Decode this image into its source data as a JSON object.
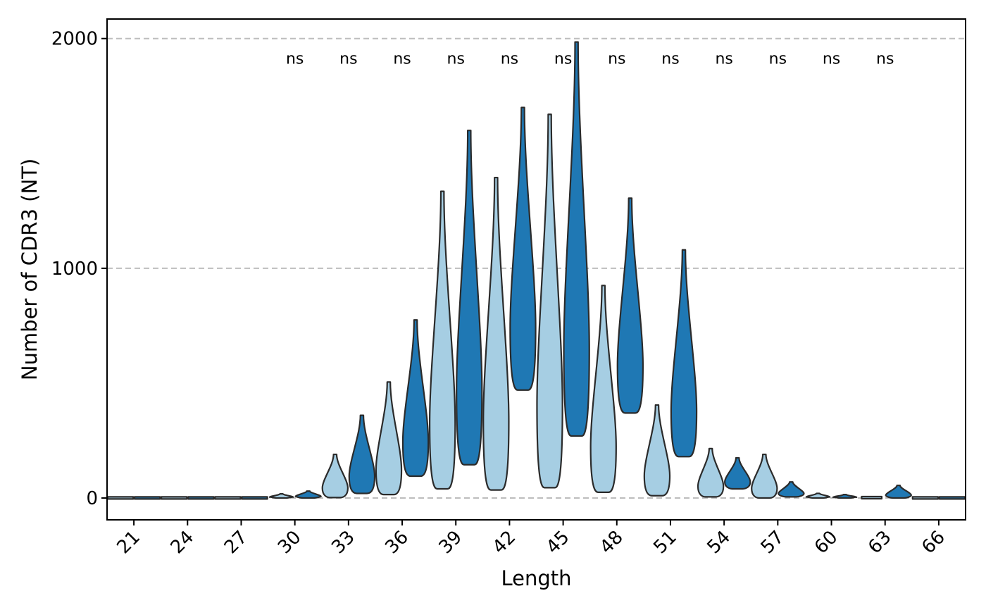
{
  "chart_data": {
    "type": "violin",
    "xlabel": "Length",
    "ylabel": "Number of CDR3 (NT)",
    "categories": [
      "21",
      "24",
      "27",
      "30",
      "33",
      "36",
      "39",
      "42",
      "45",
      "48",
      "51",
      "54",
      "57",
      "60",
      "63",
      "66"
    ],
    "ylim": [
      -95,
      2085
    ],
    "yticks": [
      0,
      1000,
      2000
    ],
    "grid": "horizontal dashed",
    "groups": [
      {
        "color": "#a6cee3"
      },
      {
        "color": "#1f78b4"
      }
    ],
    "violins": [
      {
        "category": "21",
        "group": 0,
        "min": 0,
        "max": 1,
        "maxWidth": 0.38
      },
      {
        "category": "21",
        "group": 1,
        "min": 0,
        "max": 1,
        "maxWidth": 0.38
      },
      {
        "category": "24",
        "group": 0,
        "min": 0,
        "max": 1,
        "maxWidth": 0.38
      },
      {
        "category": "24",
        "group": 1,
        "min": 0,
        "max": 1,
        "maxWidth": 0.38
      },
      {
        "category": "27",
        "group": 0,
        "min": 0,
        "max": 1,
        "maxWidth": 0.38
      },
      {
        "category": "27",
        "group": 1,
        "min": 0,
        "max": 1,
        "maxWidth": 0.38
      },
      {
        "category": "30",
        "group": 0,
        "min": 0,
        "max": 18,
        "maxWidth": 0.35
      },
      {
        "category": "30",
        "group": 1,
        "min": 0,
        "max": 30,
        "maxWidth": 0.38
      },
      {
        "category": "33",
        "group": 0,
        "min": 2,
        "max": 190,
        "maxWidth": 0.38
      },
      {
        "category": "33",
        "group": 1,
        "min": 20,
        "max": 360,
        "maxWidth": 0.38
      },
      {
        "category": "36",
        "group": 0,
        "min": 15,
        "max": 505,
        "maxWidth": 0.38
      },
      {
        "category": "36",
        "group": 1,
        "min": 95,
        "max": 775,
        "maxWidth": 0.38
      },
      {
        "category": "39",
        "group": 0,
        "min": 40,
        "max": 1335,
        "maxWidth": 0.38
      },
      {
        "category": "39",
        "group": 1,
        "min": 145,
        "max": 1600,
        "maxWidth": 0.38
      },
      {
        "category": "42",
        "group": 0,
        "min": 35,
        "max": 1395,
        "maxWidth": 0.38
      },
      {
        "category": "42",
        "group": 1,
        "min": 470,
        "max": 1700,
        "maxWidth": 0.38
      },
      {
        "category": "45",
        "group": 0,
        "min": 45,
        "max": 1670,
        "maxWidth": 0.38
      },
      {
        "category": "45",
        "group": 1,
        "min": 270,
        "max": 1985,
        "maxWidth": 0.38
      },
      {
        "category": "48",
        "group": 0,
        "min": 25,
        "max": 925,
        "maxWidth": 0.38
      },
      {
        "category": "48",
        "group": 1,
        "min": 370,
        "max": 1305,
        "maxWidth": 0.38
      },
      {
        "category": "51",
        "group": 0,
        "min": 10,
        "max": 405,
        "maxWidth": 0.38
      },
      {
        "category": "51",
        "group": 1,
        "min": 180,
        "max": 1080,
        "maxWidth": 0.38
      },
      {
        "category": "54",
        "group": 0,
        "min": 5,
        "max": 215,
        "maxWidth": 0.38
      },
      {
        "category": "54",
        "group": 1,
        "min": 40,
        "max": 175,
        "maxWidth": 0.38
      },
      {
        "category": "57",
        "group": 0,
        "min": 0,
        "max": 190,
        "maxWidth": 0.38
      },
      {
        "category": "57",
        "group": 1,
        "min": 5,
        "max": 70,
        "maxWidth": 0.38
      },
      {
        "category": "60",
        "group": 0,
        "min": 0,
        "max": 20,
        "maxWidth": 0.35
      },
      {
        "category": "60",
        "group": 1,
        "min": 0,
        "max": 15,
        "maxWidth": 0.35
      },
      {
        "category": "63",
        "group": 0,
        "min": 0,
        "max": 3,
        "maxWidth": 0.3
      },
      {
        "category": "63",
        "group": 1,
        "min": 0,
        "max": 55,
        "maxWidth": 0.38
      },
      {
        "category": "66",
        "group": 0,
        "min": 0,
        "max": 1,
        "maxWidth": 0.38
      },
      {
        "category": "66",
        "group": 1,
        "min": 0,
        "max": 1,
        "maxWidth": 0.38
      }
    ],
    "annotations": [
      {
        "category": "30",
        "text": "ns"
      },
      {
        "category": "33",
        "text": "ns"
      },
      {
        "category": "36",
        "text": "ns"
      },
      {
        "category": "39",
        "text": "ns"
      },
      {
        "category": "42",
        "text": "ns"
      },
      {
        "category": "45",
        "text": "ns"
      },
      {
        "category": "48",
        "text": "ns"
      },
      {
        "category": "51",
        "text": "ns"
      },
      {
        "category": "54",
        "text": "ns"
      },
      {
        "category": "57",
        "text": "ns"
      },
      {
        "category": "60",
        "text": "ns"
      },
      {
        "category": "63",
        "text": "ns"
      }
    ],
    "annotation_y": 1940
  }
}
